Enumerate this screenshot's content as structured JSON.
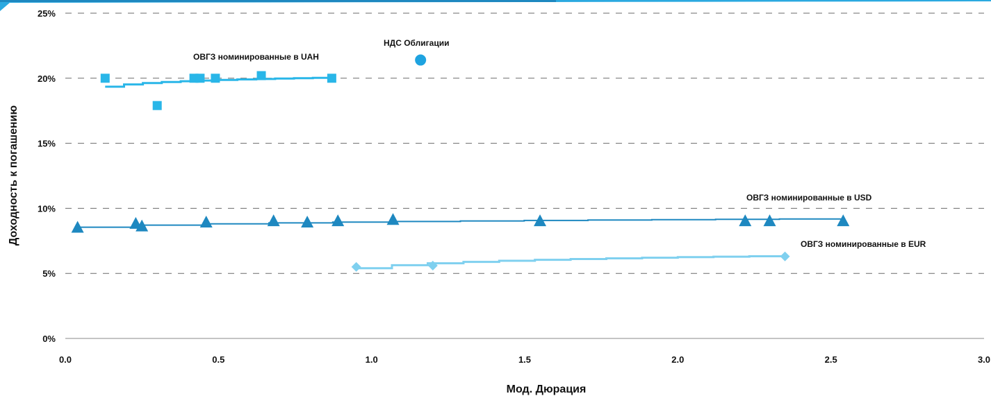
{
  "chart_data": {
    "type": "scatter",
    "title": "",
    "xlabel": "Мод. Дюрация",
    "ylabel": "Доходность к погашению",
    "xlim": [
      0,
      3
    ],
    "ylim": [
      0,
      25
    ],
    "xticks": [
      0,
      0.5,
      1,
      1.5,
      2,
      2.5,
      3
    ],
    "xtick_labels": [
      "0.0",
      "0.5",
      "1.0",
      "1.5",
      "2.0",
      "2.5",
      "3.0"
    ],
    "yticks": [
      0,
      5,
      10,
      15,
      20,
      25
    ],
    "ytick_labels": [
      "0%",
      "5%",
      "10%",
      "15%",
      "20%",
      "25%"
    ],
    "grid": "horizontal dashed",
    "legend": "none",
    "series": [
      {
        "label": "ОВГЗ номинированные в UAH",
        "marker": "square",
        "color": "#29B6E8",
        "points": [
          [
            0.13,
            20.0
          ],
          [
            0.3,
            17.9
          ],
          [
            0.42,
            20.0
          ],
          [
            0.44,
            20.0
          ],
          [
            0.49,
            20.0
          ],
          [
            0.64,
            20.2
          ],
          [
            0.87,
            20.0
          ]
        ],
        "trend": [
          [
            0.13,
            19.35
          ],
          [
            0.87,
            20.05
          ]
        ]
      },
      {
        "label": "ОВГЗ номинированные в USD",
        "marker": "triangle",
        "color": "#1E88C0",
        "points": [
          [
            0.04,
            8.5
          ],
          [
            0.23,
            8.8
          ],
          [
            0.25,
            8.6
          ],
          [
            0.46,
            8.9
          ],
          [
            0.68,
            9.0
          ],
          [
            0.79,
            8.9
          ],
          [
            0.89,
            9.0
          ],
          [
            1.07,
            9.1
          ],
          [
            1.55,
            9.0
          ],
          [
            2.22,
            9.0
          ],
          [
            2.3,
            9.0
          ],
          [
            2.54,
            9.0
          ]
        ],
        "trend": [
          [
            0.04,
            8.55
          ],
          [
            2.54,
            9.2
          ]
        ]
      },
      {
        "label": "ОВГЗ номинированные в EUR",
        "marker": "diamond",
        "color": "#7FD0EF",
        "points": [
          [
            0.95,
            5.5
          ],
          [
            1.2,
            5.6
          ],
          [
            2.35,
            6.3
          ]
        ],
        "trend": [
          [
            0.95,
            5.4
          ],
          [
            2.35,
            6.35
          ]
        ]
      },
      {
        "label": "НДС Облигации",
        "marker": "circle",
        "color": "#1EA3E0",
        "points": [
          [
            1.16,
            21.4
          ]
        ]
      }
    ],
    "annotations": [
      "ОВГЗ номинированные в UAH",
      "НДС Облигации",
      "ОВГЗ номинированные в USD",
      "ОВГЗ номинированные в EUR"
    ]
  }
}
